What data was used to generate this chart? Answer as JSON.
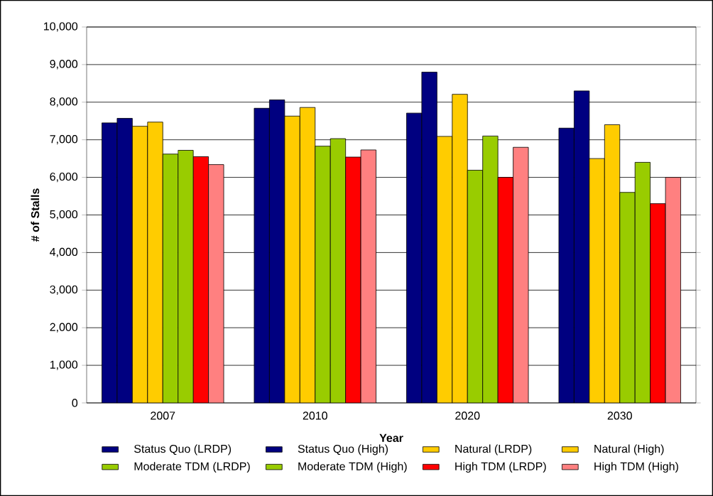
{
  "chart_data": {
    "type": "bar",
    "xlabel": "Year",
    "ylabel": "# of Stalls",
    "categories": [
      "2007",
      "2010",
      "2020",
      "2030"
    ],
    "series": [
      {
        "name": "Status Quo (LRDP)",
        "color": "#000080",
        "values": [
          7450,
          7840,
          7710,
          7310
        ]
      },
      {
        "name": "Status Quo (High)",
        "color": "#000080",
        "values": [
          7570,
          8060,
          8800,
          8300
        ]
      },
      {
        "name": "Natural (LRDP)",
        "color": "#ffcc00",
        "values": [
          7360,
          7630,
          7090,
          6500
        ]
      },
      {
        "name": "Natural (High)",
        "color": "#ffcc00",
        "values": [
          7470,
          7860,
          8210,
          7400
        ]
      },
      {
        "name": "Moderate TDM (LRDP)",
        "color": "#99cc00",
        "values": [
          6620,
          6830,
          6190,
          5600
        ]
      },
      {
        "name": "Moderate TDM (High)",
        "color": "#99cc00",
        "values": [
          6720,
          7030,
          7100,
          6400
        ]
      },
      {
        "name": "High TDM (LRDP)",
        "color": "#ff0000",
        "values": [
          6550,
          6540,
          6000,
          5300
        ]
      },
      {
        "name": "High TDM (High)",
        "color": "#ff8080",
        "values": [
          6340,
          6730,
          6800,
          6000
        ]
      }
    ],
    "ylim": [
      0,
      10000
    ],
    "yticks": [
      0,
      {
        "value": 1000,
        "label": "1,000"
      },
      {
        "value": 2000,
        "label": "2,000"
      },
      {
        "value": 3000,
        "label": "3,000"
      },
      {
        "value": 4000,
        "label": "4,000"
      },
      {
        "value": 5000,
        "label": "5,000"
      },
      {
        "value": 6000,
        "label": "6,000"
      },
      {
        "value": 7000,
        "label": "7,000"
      },
      {
        "value": 8000,
        "label": "8,000"
      },
      {
        "value": 9000,
        "label": "9,000"
      },
      {
        "value": 10000,
        "label": "10,000"
      }
    ],
    "grid": "y",
    "legend": "bottom"
  }
}
